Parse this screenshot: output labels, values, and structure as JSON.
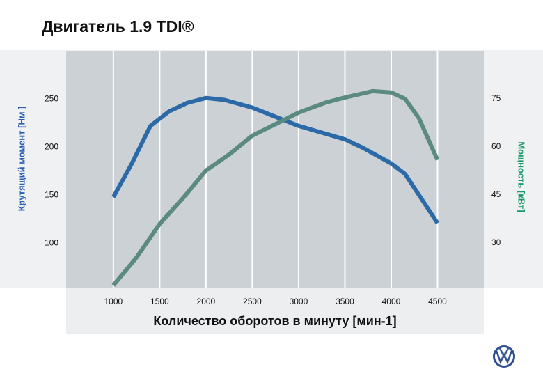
{
  "chart_data": {
    "type": "line",
    "title": "Двигатель 1.9 TDI®",
    "xlabel": "Количество оборотов в минуту [мин-1]",
    "ylabel": "Крутящий момент [Нм ]",
    "y2label": "Мощность [кВт]",
    "xlim": [
      490,
      5000
    ],
    "xticks": [
      1000,
      1500,
      2000,
      2500,
      3000,
      3500,
      4000,
      4500
    ],
    "ylim": [
      54,
      300
    ],
    "yticks": [
      100,
      150,
      200,
      250
    ],
    "y2lim": [
      16,
      90
    ],
    "y2ticks": [
      30,
      45,
      60,
      75
    ],
    "grid": true,
    "series": [
      {
        "name": "Крутящий момент [Нм ]",
        "color": "#2b6aa6",
        "x": [
          1000,
          1200,
          1400,
          1600,
          1800,
          2000,
          2200,
          2500,
          3000,
          3500,
          3700,
          4000,
          4150,
          4500
        ],
        "values": [
          148,
          183,
          222,
          237,
          246,
          251,
          249,
          241,
          222,
          208,
          199,
          183,
          172,
          121
        ]
      },
      {
        "name": "Мощность [кВт]",
        "color": "#5a8a80",
        "axis": "y2",
        "x": [
          1000,
          1250,
          1500,
          1750,
          2000,
          2250,
          2500,
          2800,
          3000,
          3300,
          3500,
          3800,
          4000,
          4150,
          4300,
          4500
        ],
        "values": [
          16.7,
          25.4,
          35.9,
          43.9,
          52.6,
          57.6,
          63.5,
          67.8,
          70.7,
          73.9,
          75.4,
          77.4,
          77,
          75,
          68.9,
          55.9
        ]
      }
    ]
  }
}
